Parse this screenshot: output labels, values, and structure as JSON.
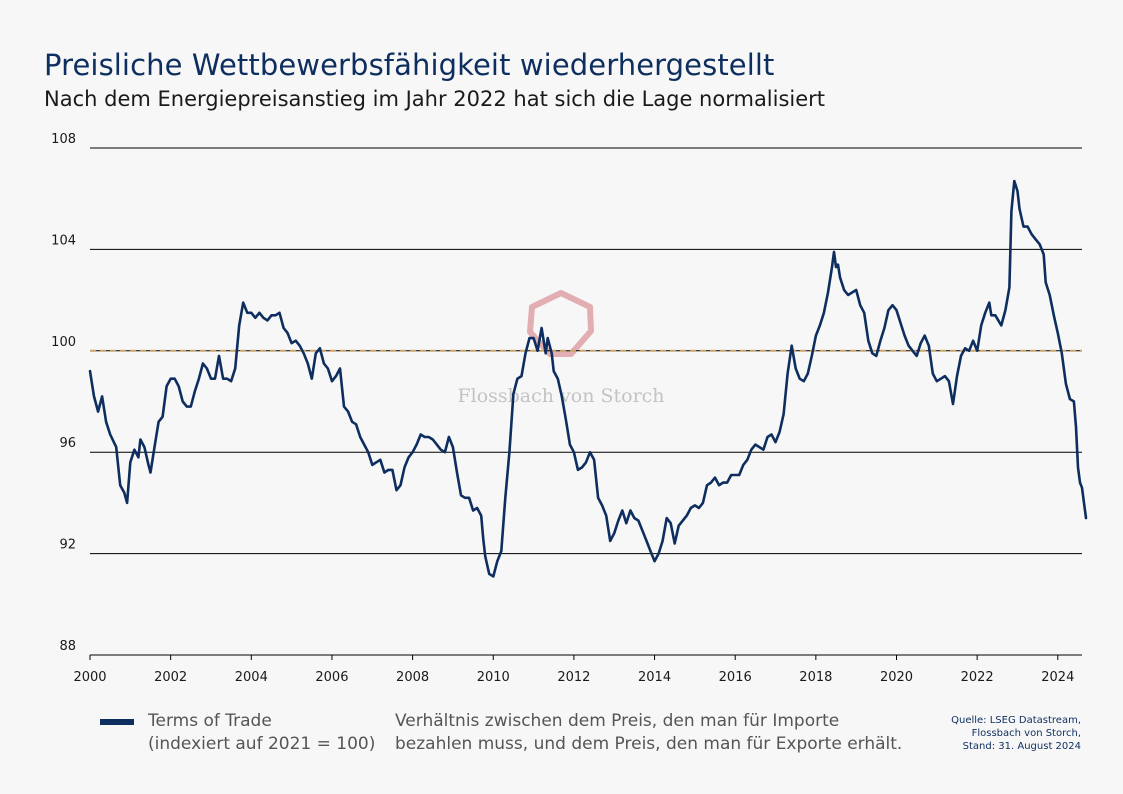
{
  "header": {
    "title": "Preisliche Wettbewerbsfähigkeit wiederhergestellt",
    "subtitle": "Nach dem Energiepreisanstieg im Jahr 2022 hat sich die Lage normalisiert"
  },
  "legend": {
    "label_line1": "Terms of Trade",
    "label_line2": "(indexiert auf 2021 = 100)",
    "desc_line1": "Verhältnis zwischen dem Preis, den man für Importe",
    "desc_line2": "bezahlen muss, und dem Preis, den man für Exporte erhält."
  },
  "source": {
    "line1": "Quelle: LSEG Datastream,",
    "line2": "Flossbach von Storch,",
    "line3": "Stand: 31. August 2024"
  },
  "watermark": {
    "text": "Flossbach von Storch"
  },
  "colors": {
    "line": "#0d2e5e",
    "reference": "#c8a46a",
    "watermark_logo": "#e2aeb2"
  },
  "chart_data": {
    "type": "line",
    "xlim": [
      2000,
      2024.6
    ],
    "ylim": [
      88,
      108
    ],
    "yticks": [
      88,
      92,
      96,
      100,
      104,
      108
    ],
    "xticks": [
      2000,
      2002,
      2004,
      2006,
      2008,
      2010,
      2012,
      2014,
      2016,
      2018,
      2020,
      2022,
      2024
    ],
    "grid": "horizontal",
    "reference_line": 100,
    "series": [
      {
        "name": "Terms of Trade",
        "points": [
          [
            2000.0,
            99.2
          ],
          [
            2000.1,
            98.2
          ],
          [
            2000.2,
            97.6
          ],
          [
            2000.3,
            98.2
          ],
          [
            2000.4,
            97.2
          ],
          [
            2000.5,
            96.7
          ],
          [
            2000.65,
            96.2
          ],
          [
            2000.75,
            94.7
          ],
          [
            2000.85,
            94.4
          ],
          [
            2000.92,
            94.0
          ],
          [
            2001.0,
            95.6
          ],
          [
            2001.1,
            96.1
          ],
          [
            2001.2,
            95.8
          ],
          [
            2001.25,
            96.5
          ],
          [
            2001.35,
            96.2
          ],
          [
            2001.45,
            95.5
          ],
          [
            2001.5,
            95.2
          ],
          [
            2001.6,
            96.2
          ],
          [
            2001.7,
            97.2
          ],
          [
            2001.8,
            97.4
          ],
          [
            2001.9,
            98.6
          ],
          [
            2002.0,
            98.9
          ],
          [
            2002.1,
            98.9
          ],
          [
            2002.2,
            98.6
          ],
          [
            2002.3,
            98.0
          ],
          [
            2002.4,
            97.8
          ],
          [
            2002.5,
            97.8
          ],
          [
            2002.6,
            98.4
          ],
          [
            2002.7,
            98.9
          ],
          [
            2002.8,
            99.5
          ],
          [
            2002.9,
            99.3
          ],
          [
            2003.0,
            98.9
          ],
          [
            2003.1,
            98.9
          ],
          [
            2003.2,
            99.8
          ],
          [
            2003.3,
            98.9
          ],
          [
            2003.4,
            98.9
          ],
          [
            2003.5,
            98.8
          ],
          [
            2003.6,
            99.3
          ],
          [
            2003.7,
            101.0
          ],
          [
            2003.8,
            101.9
          ],
          [
            2003.9,
            101.5
          ],
          [
            2004.0,
            101.5
          ],
          [
            2004.1,
            101.3
          ],
          [
            2004.2,
            101.5
          ],
          [
            2004.3,
            101.3
          ],
          [
            2004.4,
            101.2
          ],
          [
            2004.5,
            101.4
          ],
          [
            2004.6,
            101.4
          ],
          [
            2004.7,
            101.5
          ],
          [
            2004.8,
            100.9
          ],
          [
            2004.9,
            100.7
          ],
          [
            2005.0,
            100.3
          ],
          [
            2005.1,
            100.4
          ],
          [
            2005.2,
            100.2
          ],
          [
            2005.3,
            99.9
          ],
          [
            2005.4,
            99.5
          ],
          [
            2005.5,
            98.9
          ],
          [
            2005.6,
            99.9
          ],
          [
            2005.7,
            100.1
          ],
          [
            2005.8,
            99.5
          ],
          [
            2005.9,
            99.3
          ],
          [
            2006.0,
            98.8
          ],
          [
            2006.1,
            99.0
          ],
          [
            2006.2,
            99.3
          ],
          [
            2006.3,
            97.8
          ],
          [
            2006.4,
            97.6
          ],
          [
            2006.5,
            97.2
          ],
          [
            2006.6,
            97.1
          ],
          [
            2006.7,
            96.6
          ],
          [
            2006.8,
            96.3
          ],
          [
            2006.9,
            96.0
          ],
          [
            2007.0,
            95.5
          ],
          [
            2007.1,
            95.6
          ],
          [
            2007.2,
            95.7
          ],
          [
            2007.3,
            95.2
          ],
          [
            2007.4,
            95.3
          ],
          [
            2007.5,
            95.3
          ],
          [
            2007.6,
            94.5
          ],
          [
            2007.7,
            94.7
          ],
          [
            2007.8,
            95.4
          ],
          [
            2007.9,
            95.8
          ],
          [
            2008.0,
            96.0
          ],
          [
            2008.1,
            96.3
          ],
          [
            2008.2,
            96.7
          ],
          [
            2008.3,
            96.6
          ],
          [
            2008.4,
            96.6
          ],
          [
            2008.5,
            96.5
          ],
          [
            2008.6,
            96.3
          ],
          [
            2008.7,
            96.1
          ],
          [
            2008.8,
            96.0
          ],
          [
            2008.9,
            96.6
          ],
          [
            2009.0,
            96.2
          ],
          [
            2009.1,
            95.2
          ],
          [
            2009.2,
            94.3
          ],
          [
            2009.3,
            94.2
          ],
          [
            2009.4,
            94.2
          ],
          [
            2009.5,
            93.7
          ],
          [
            2009.6,
            93.8
          ],
          [
            2009.7,
            93.5
          ],
          [
            2009.75,
            92.6
          ],
          [
            2009.8,
            91.9
          ],
          [
            2009.9,
            91.2
          ],
          [
            2010.0,
            91.1
          ],
          [
            2010.1,
            91.7
          ],
          [
            2010.2,
            92.1
          ],
          [
            2010.3,
            94.2
          ],
          [
            2010.4,
            96.0
          ],
          [
            2010.5,
            98.3
          ],
          [
            2010.6,
            98.9
          ],
          [
            2010.7,
            99.0
          ],
          [
            2010.8,
            99.9
          ],
          [
            2010.9,
            100.5
          ],
          [
            2011.0,
            100.5
          ],
          [
            2011.1,
            100.0
          ],
          [
            2011.2,
            100.9
          ],
          [
            2011.3,
            99.9
          ],
          [
            2011.35,
            100.5
          ],
          [
            2011.45,
            99.9
          ],
          [
            2011.5,
            99.2
          ],
          [
            2011.6,
            98.9
          ],
          [
            2011.7,
            98.2
          ],
          [
            2011.8,
            97.3
          ],
          [
            2011.9,
            96.3
          ],
          [
            2012.0,
            96.0
          ],
          [
            2012.1,
            95.3
          ],
          [
            2012.2,
            95.4
          ],
          [
            2012.3,
            95.6
          ],
          [
            2012.4,
            96.0
          ],
          [
            2012.5,
            95.7
          ],
          [
            2012.6,
            94.2
          ],
          [
            2012.7,
            93.9
          ],
          [
            2012.8,
            93.5
          ],
          [
            2012.9,
            92.5
          ],
          [
            2013.0,
            92.8
          ],
          [
            2013.1,
            93.3
          ],
          [
            2013.2,
            93.7
          ],
          [
            2013.3,
            93.2
          ],
          [
            2013.4,
            93.7
          ],
          [
            2013.5,
            93.4
          ],
          [
            2013.6,
            93.3
          ],
          [
            2013.7,
            92.9
          ],
          [
            2013.8,
            92.5
          ],
          [
            2013.9,
            92.1
          ],
          [
            2014.0,
            91.7
          ],
          [
            2014.1,
            92.0
          ],
          [
            2014.2,
            92.5
          ],
          [
            2014.3,
            93.4
          ],
          [
            2014.4,
            93.2
          ],
          [
            2014.5,
            92.4
          ],
          [
            2014.6,
            93.1
          ],
          [
            2014.7,
            93.3
          ],
          [
            2014.8,
            93.5
          ],
          [
            2014.9,
            93.8
          ],
          [
            2015.0,
            93.9
          ],
          [
            2015.1,
            93.8
          ],
          [
            2015.2,
            94.0
          ],
          [
            2015.3,
            94.7
          ],
          [
            2015.4,
            94.8
          ],
          [
            2015.5,
            95.0
          ],
          [
            2015.6,
            94.7
          ],
          [
            2015.7,
            94.8
          ],
          [
            2015.8,
            94.8
          ],
          [
            2015.9,
            95.1
          ],
          [
            2016.0,
            95.1
          ],
          [
            2016.1,
            95.1
          ],
          [
            2016.2,
            95.5
          ],
          [
            2016.3,
            95.7
          ],
          [
            2016.4,
            96.1
          ],
          [
            2016.5,
            96.3
          ],
          [
            2016.6,
            96.2
          ],
          [
            2016.7,
            96.1
          ],
          [
            2016.8,
            96.6
          ],
          [
            2016.9,
            96.7
          ],
          [
            2017.0,
            96.4
          ],
          [
            2017.1,
            96.8
          ],
          [
            2017.2,
            97.5
          ],
          [
            2017.3,
            99.1
          ],
          [
            2017.4,
            100.2
          ],
          [
            2017.5,
            99.3
          ],
          [
            2017.6,
            98.9
          ],
          [
            2017.7,
            98.8
          ],
          [
            2017.8,
            99.1
          ],
          [
            2017.9,
            99.8
          ],
          [
            2018.0,
            100.6
          ],
          [
            2018.1,
            101.0
          ],
          [
            2018.2,
            101.5
          ],
          [
            2018.3,
            102.3
          ],
          [
            2018.4,
            103.3
          ],
          [
            2018.45,
            103.9
          ],
          [
            2018.5,
            103.3
          ],
          [
            2018.55,
            103.4
          ],
          [
            2018.6,
            102.9
          ],
          [
            2018.7,
            102.4
          ],
          [
            2018.8,
            102.2
          ],
          [
            2018.9,
            102.3
          ],
          [
            2019.0,
            102.4
          ],
          [
            2019.1,
            101.8
          ],
          [
            2019.2,
            101.5
          ],
          [
            2019.3,
            100.4
          ],
          [
            2019.4,
            99.9
          ],
          [
            2019.5,
            99.8
          ],
          [
            2019.6,
            100.4
          ],
          [
            2019.7,
            100.9
          ],
          [
            2019.8,
            101.6
          ],
          [
            2019.9,
            101.8
          ],
          [
            2020.0,
            101.6
          ],
          [
            2020.1,
            101.1
          ],
          [
            2020.2,
            100.6
          ],
          [
            2020.3,
            100.2
          ],
          [
            2020.4,
            100.0
          ],
          [
            2020.5,
            99.8
          ],
          [
            2020.6,
            100.3
          ],
          [
            2020.7,
            100.6
          ],
          [
            2020.8,
            100.2
          ],
          [
            2020.9,
            99.1
          ],
          [
            2021.0,
            98.8
          ],
          [
            2021.1,
            98.9
          ],
          [
            2021.2,
            99.0
          ],
          [
            2021.3,
            98.8
          ],
          [
            2021.4,
            97.9
          ],
          [
            2021.5,
            99.0
          ],
          [
            2021.6,
            99.8
          ],
          [
            2021.7,
            100.1
          ],
          [
            2021.8,
            100.0
          ],
          [
            2021.9,
            100.4
          ],
          [
            2022.0,
            100.0
          ],
          [
            2022.1,
            101.0
          ],
          [
            2022.2,
            101.5
          ],
          [
            2022.3,
            101.9
          ],
          [
            2022.35,
            101.4
          ],
          [
            2022.45,
            101.4
          ],
          [
            2022.6,
            101.0
          ],
          [
            2022.7,
            101.6
          ],
          [
            2022.8,
            102.5
          ],
          [
            2022.85,
            105.5
          ],
          [
            2022.92,
            106.7
          ],
          [
            2023.0,
            106.3
          ],
          [
            2023.05,
            105.6
          ],
          [
            2023.15,
            104.9
          ],
          [
            2023.25,
            104.9
          ],
          [
            2023.35,
            104.6
          ],
          [
            2023.45,
            104.4
          ],
          [
            2023.55,
            104.2
          ],
          [
            2023.65,
            103.8
          ],
          [
            2023.7,
            102.7
          ],
          [
            2023.8,
            102.2
          ],
          [
            2023.9,
            101.4
          ],
          [
            2024.0,
            100.7
          ],
          [
            2024.1,
            99.9
          ],
          [
            2024.2,
            98.7
          ],
          [
            2024.3,
            98.1
          ],
          [
            2024.4,
            98.0
          ],
          [
            2024.45,
            97.0
          ],
          [
            2024.5,
            95.4
          ],
          [
            2024.55,
            94.8
          ],
          [
            2024.6,
            94.6
          ],
          [
            2024.65,
            94.0
          ],
          [
            2024.7,
            93.4
          ]
        ]
      }
    ]
  }
}
